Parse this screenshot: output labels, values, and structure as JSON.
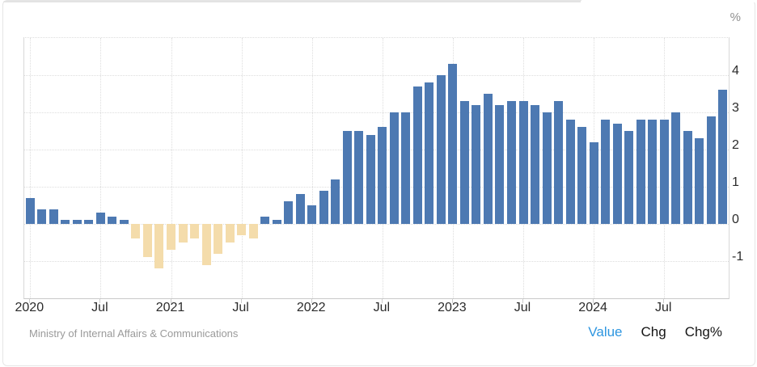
{
  "header": {
    "unit_label": "%"
  },
  "footer": {
    "source": "Ministry of Internal Affairs & Communications",
    "modes": [
      {
        "label": "Value",
        "active": true
      },
      {
        "label": "Chg",
        "active": false
      },
      {
        "label": "Chg%",
        "active": false
      }
    ]
  },
  "colors": {
    "bar_positive": "#4d79b2",
    "bar_negative": "#f4dcab",
    "mode_active": "#2e96e0",
    "axis_text": "#2b2b2b",
    "muted_text": "#9a9a9a"
  },
  "chart_data": {
    "type": "bar",
    "ylabel": "%",
    "ylim": [
      -2,
      5
    ],
    "yticks": [
      -1,
      0,
      1,
      2,
      3,
      4
    ],
    "grid": "dotted",
    "legend": "none",
    "x": [
      "2020-01",
      "2020-02",
      "2020-03",
      "2020-04",
      "2020-05",
      "2020-06",
      "2020-07",
      "2020-08",
      "2020-09",
      "2020-10",
      "2020-11",
      "2020-12",
      "2021-01",
      "2021-02",
      "2021-03",
      "2021-04",
      "2021-05",
      "2021-06",
      "2021-07",
      "2021-08",
      "2021-09",
      "2021-10",
      "2021-11",
      "2021-12",
      "2022-01",
      "2022-02",
      "2022-03",
      "2022-04",
      "2022-05",
      "2022-06",
      "2022-07",
      "2022-08",
      "2022-09",
      "2022-10",
      "2022-11",
      "2022-12",
      "2023-01",
      "2023-02",
      "2023-03",
      "2023-04",
      "2023-05",
      "2023-06",
      "2023-07",
      "2023-08",
      "2023-09",
      "2023-10",
      "2023-11",
      "2023-12",
      "2024-01",
      "2024-02",
      "2024-03",
      "2024-04",
      "2024-05",
      "2024-06",
      "2024-07",
      "2024-08",
      "2024-09",
      "2024-10",
      "2024-11",
      "2024-12"
    ],
    "values": [
      0.7,
      0.4,
      0.4,
      0.1,
      0.1,
      0.1,
      0.3,
      0.2,
      0.1,
      -0.4,
      -0.9,
      -1.2,
      -0.7,
      -0.5,
      -0.4,
      -1.1,
      -0.8,
      -0.5,
      -0.3,
      -0.4,
      0.2,
      0.1,
      0.6,
      0.8,
      0.5,
      0.9,
      1.2,
      2.5,
      2.5,
      2.4,
      2.6,
      3.0,
      3.0,
      3.7,
      3.8,
      4.0,
      4.3,
      3.3,
      3.2,
      3.5,
      3.2,
      3.3,
      3.3,
      3.2,
      3.0,
      3.3,
      2.8,
      2.6,
      2.2,
      2.8,
      2.7,
      2.5,
      2.8,
      2.8,
      2.8,
      3.0,
      2.5,
      2.3,
      2.9,
      3.6
    ],
    "xticks": [
      {
        "label": "2020",
        "index": 0
      },
      {
        "label": "Jul",
        "index": 6
      },
      {
        "label": "2021",
        "index": 12
      },
      {
        "label": "Jul",
        "index": 18
      },
      {
        "label": "2022",
        "index": 24
      },
      {
        "label": "Jul",
        "index": 30
      },
      {
        "label": "2023",
        "index": 36
      },
      {
        "label": "Jul",
        "index": 42
      },
      {
        "label": "2024",
        "index": 48
      },
      {
        "label": "Jul",
        "index": 54
      }
    ]
  }
}
